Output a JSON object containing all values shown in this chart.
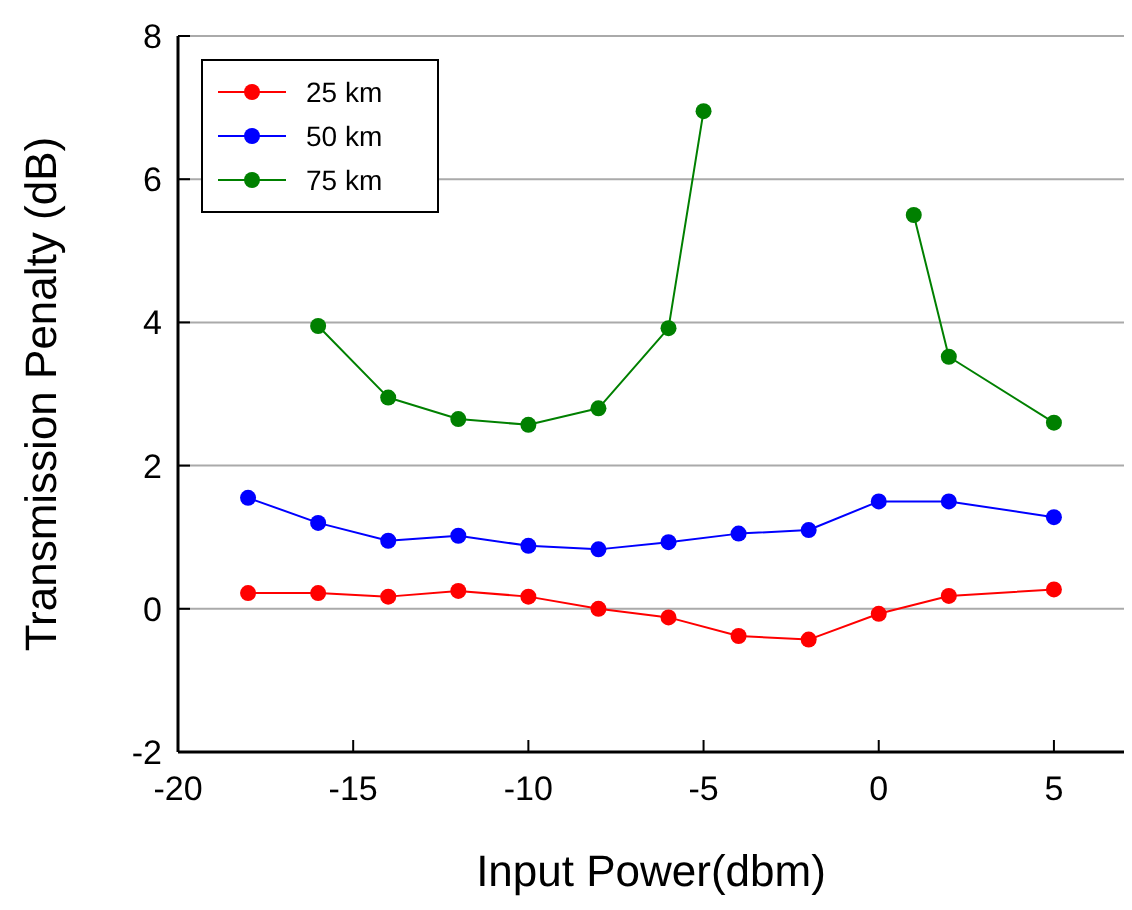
{
  "chart_data": {
    "type": "line",
    "xlabel": "Input Power(dbm)",
    "ylabel": "Transmission Penalty (dB)",
    "xlim": [
      -20,
      7
    ],
    "xticks": [
      -20,
      -15,
      -10,
      -5,
      0,
      5
    ],
    "ylim": [
      -2,
      8
    ],
    "yticks": [
      -2,
      0,
      2,
      4,
      6,
      8
    ],
    "grid": "y",
    "legend": "top left",
    "marker": "circle",
    "line_style": "solid",
    "series": [
      {
        "name": "25 km",
        "color": "#ff0000",
        "x": [
          -18,
          -16,
          -14,
          -12,
          -10,
          -8,
          -6,
          -4,
          -2,
          0,
          2,
          5
        ],
        "values": [
          0.22,
          0.22,
          0.17,
          0.25,
          0.17,
          0.0,
          -0.12,
          -0.38,
          -0.43,
          -0.07,
          0.18,
          0.27
        ]
      },
      {
        "name": "50 km",
        "color": "#0000ff",
        "x": [
          -18,
          -16,
          -14,
          -12,
          -10,
          -8,
          -6,
          -4,
          -2,
          0,
          2,
          5
        ],
        "values": [
          1.55,
          1.2,
          0.95,
          1.02,
          0.88,
          0.83,
          0.93,
          1.05,
          1.1,
          1.5,
          1.5,
          1.28
        ]
      },
      {
        "name": "75 km",
        "color": "#008000",
        "x": [
          -16,
          -14,
          -12,
          -10,
          -8,
          -6,
          -5,
          -2,
          1,
          2,
          5
        ],
        "values": [
          3.95,
          2.95,
          2.65,
          2.57,
          2.8,
          3.92,
          6.95,
          null,
          5.5,
          3.52,
          2.6
        ]
      }
    ]
  }
}
